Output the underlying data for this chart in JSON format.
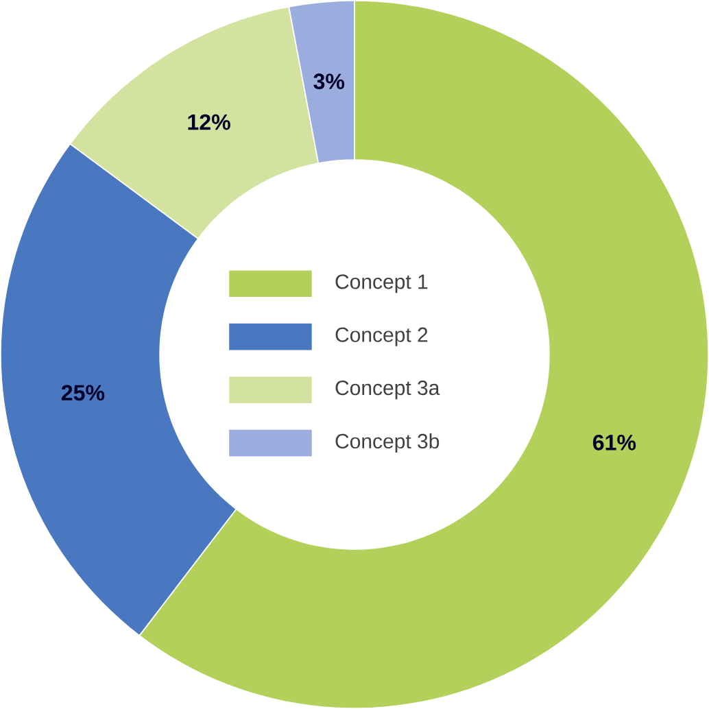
{
  "chart_data": {
    "type": "donut",
    "categories": [
      "Concept 1",
      "Concept 2",
      "Concept 3a",
      "Concept 3b"
    ],
    "values": [
      61,
      25,
      12,
      3
    ],
    "colors": [
      "#b3d15a",
      "#4a78c0",
      "#d3e39f",
      "#9badde"
    ],
    "value_labels": [
      "61%",
      "25%",
      "12%",
      "3%"
    ],
    "legend": "center"
  }
}
